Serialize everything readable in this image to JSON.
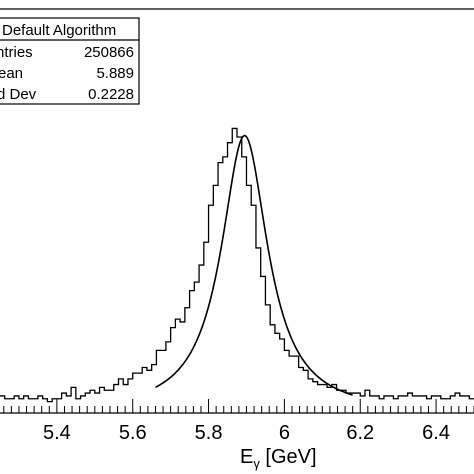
{
  "chart_data": {
    "type": "histogram",
    "xlabel_main": "E",
    "xlabel_sub": "γ",
    "xlabel_unit": " [GeV]",
    "xlim": [
      5.25,
      6.5
    ],
    "ylim": [
      0,
      1.1
    ],
    "x_ticks": [
      {
        "value": 5.4,
        "label": "5.4"
      },
      {
        "value": 5.6,
        "label": "5.6"
      },
      {
        "value": 5.8,
        "label": "5.8"
      },
      {
        "value": 6.0,
        "label": "6"
      },
      {
        "value": 6.2,
        "label": "6.2"
      },
      {
        "value": 6.4,
        "label": "6.4"
      }
    ],
    "stats_box": {
      "title": "Default Algorithm",
      "rows": [
        {
          "label": "ntries",
          "value": "250866"
        },
        {
          "label": "ean",
          "value": "5.889"
        },
        {
          "label": "d Dev",
          "value": "0.2228"
        }
      ]
    },
    "histogram": {
      "bin_width": 0.0125,
      "x_start": 5.25,
      "values": [
        0.06,
        0.05,
        0.05,
        0.06,
        0.05,
        0.06,
        0.05,
        0.05,
        0.06,
        0.05,
        0.04,
        0.05,
        0.05,
        0.07,
        0.06,
        0.09,
        0.05,
        0.06,
        0.07,
        0.08,
        0.07,
        0.09,
        0.08,
        0.08,
        0.1,
        0.12,
        0.1,
        0.12,
        0.14,
        0.14,
        0.16,
        0.15,
        0.17,
        0.22,
        0.22,
        0.25,
        0.3,
        0.33,
        0.32,
        0.37,
        0.43,
        0.46,
        0.52,
        0.6,
        0.73,
        0.8,
        0.88,
        0.9,
        0.95,
        1.0,
        0.97,
        0.9,
        0.8,
        0.73,
        0.58,
        0.48,
        0.38,
        0.31,
        0.28,
        0.26,
        0.22,
        0.2,
        0.2,
        0.16,
        0.15,
        0.12,
        0.11,
        0.1,
        0.1,
        0.09,
        0.1,
        0.08,
        0.08,
        0.07,
        0.07,
        0.07,
        0.06,
        0.08,
        0.06,
        0.06,
        0.05,
        0.06,
        0.06,
        0.05,
        0.06,
        0.06,
        0.07,
        0.06,
        0.06,
        0.06,
        0.05,
        0.06,
        0.06,
        0.05,
        0.05,
        0.06,
        0.07,
        0.06,
        0.06,
        0.05
      ]
    },
    "fit": {
      "type": "lorentzian",
      "peak": 0.975,
      "center": 5.895,
      "half_width": 0.075,
      "x_range": [
        5.66,
        6.18
      ]
    }
  }
}
